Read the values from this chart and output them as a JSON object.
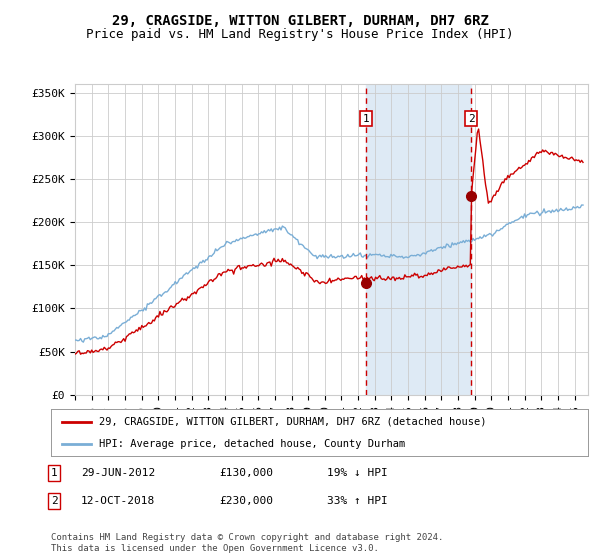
{
  "title": "29, CRAGSIDE, WITTON GILBERT, DURHAM, DH7 6RZ",
  "subtitle": "Price paid vs. HM Land Registry's House Price Index (HPI)",
  "ylim": [
    0,
    360000
  ],
  "yticks": [
    0,
    50000,
    100000,
    150000,
    200000,
    250000,
    300000,
    350000
  ],
  "ytick_labels": [
    "£0",
    "£50K",
    "£100K",
    "£150K",
    "£200K",
    "£250K",
    "£300K",
    "£350K"
  ],
  "xlim_start": 1995.0,
  "xlim_end": 2025.8,
  "event1_date": 2012.49,
  "event2_date": 2018.78,
  "event1_label": "1",
  "event2_label": "2",
  "event1_price": "£130,000",
  "event1_date_str": "29-JUN-2012",
  "event1_pct": "19% ↓ HPI",
  "event2_price": "£230,000",
  "event2_date_str": "12-OCT-2018",
  "event2_pct": "33% ↑ HPI",
  "line1_color": "#cc0000",
  "line2_color": "#7aaed6",
  "shade_color": "#deeaf5",
  "vline_color": "#cc0000",
  "background_color": "#ffffff",
  "grid_color": "#cccccc",
  "legend1_label": "29, CRAGSIDE, WITTON GILBERT, DURHAM, DH7 6RZ (detached house)",
  "legend2_label": "HPI: Average price, detached house, County Durham",
  "footer": "Contains HM Land Registry data © Crown copyright and database right 2024.\nThis data is licensed under the Open Government Licence v3.0.",
  "title_fontsize": 10,
  "subtitle_fontsize": 9,
  "tick_fontsize": 8
}
